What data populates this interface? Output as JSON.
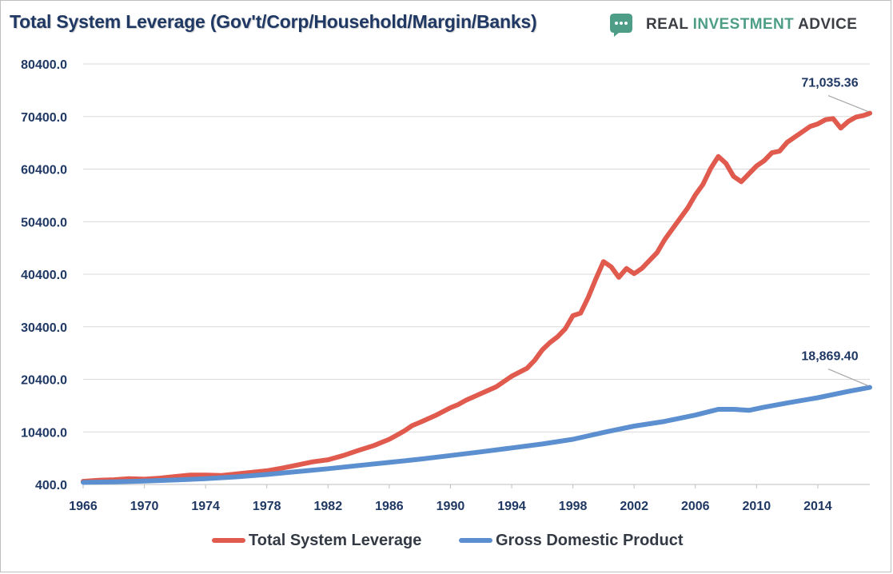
{
  "title": "Total System Leverage (Gov't/Corp/Household/Margin/Banks)",
  "brand": {
    "word1": "REAL ",
    "word2": "INVESTMENT",
    "word3": " ADVICE",
    "icon": "speech-bubble-icon",
    "icon_color": "#4e9e87"
  },
  "chart_data": {
    "type": "line",
    "title": "Total System Leverage (Gov't/Corp/Household/Margin/Banks)",
    "xlabel": "",
    "ylabel": "",
    "xlim": [
      1966,
      2017.4
    ],
    "ylim": [
      400,
      80400
    ],
    "y_ticks": [
      "80400.0",
      "70400.0",
      "60400.0",
      "50400.0",
      "40400.0",
      "30400.0",
      "20400.0",
      "10400.0",
      "400.0"
    ],
    "y_tick_values": [
      80400,
      70400,
      60400,
      50400,
      40400,
      30400,
      20400,
      10400,
      400
    ],
    "x_ticks": [
      "1966",
      "1970",
      "1974",
      "1978",
      "1982",
      "1986",
      "1990",
      "1994",
      "1998",
      "2002",
      "2006",
      "2010",
      "2014"
    ],
    "x_tick_values": [
      1966,
      1970,
      1974,
      1978,
      1982,
      1986,
      1990,
      1994,
      1998,
      2002,
      2006,
      2010,
      2014
    ],
    "grid": "horizontal",
    "legend_position": "bottom",
    "series": [
      {
        "name": "Total System Leverage",
        "color": "#e05a4e",
        "end_label": "71,035.36",
        "x": [
          1966,
          1967,
          1968,
          1969,
          1970,
          1971,
          1972,
          1973,
          1974,
          1975,
          1976,
          1977,
          1978,
          1979,
          1980,
          1981,
          1982,
          1983,
          1984,
          1985,
          1986,
          1986.5,
          1987,
          1987.5,
          1988,
          1989,
          1990,
          1990.5,
          1991,
          1992,
          1993,
          1994,
          1995,
          1995.5,
          1996,
          1996.5,
          1997,
          1997.5,
          1998,
          1998.5,
          1999,
          1999.5,
          2000,
          2000.5,
          2001,
          2001.5,
          2002,
          2002.5,
          2003,
          2003.5,
          2004,
          2004.5,
          2005,
          2005.5,
          2006,
          2006.5,
          2007,
          2007.5,
          2008,
          2008.5,
          2009,
          2009.5,
          2010,
          2010.5,
          2011,
          2011.5,
          2012,
          2012.5,
          2013,
          2013.5,
          2014,
          2014.5,
          2015,
          2015.5,
          2016,
          2016.5,
          2017,
          2017.4
        ],
        "values": [
          1000,
          1200,
          1300,
          1500,
          1400,
          1600,
          1900,
          2200,
          2200,
          2100,
          2400,
          2700,
          3000,
          3500,
          4100,
          4700,
          5100,
          5900,
          6900,
          7800,
          9000,
          9800,
          10600,
          11600,
          12200,
          13500,
          15000,
          15600,
          16400,
          17700,
          19000,
          21000,
          22500,
          24000,
          26000,
          27400,
          28500,
          30000,
          32500,
          33000,
          36000,
          39500,
          42800,
          41800,
          39800,
          41500,
          40500,
          41500,
          43000,
          44500,
          47000,
          49000,
          51000,
          53000,
          55500,
          57500,
          60500,
          62800,
          61500,
          59000,
          58000,
          59500,
          61000,
          62000,
          63500,
          63800,
          65500,
          66500,
          67500,
          68500,
          69000,
          69800,
          70000,
          68200,
          69500,
          70300,
          70600,
          71035.36
        ]
      },
      {
        "name": "Gross Domestic Product",
        "color": "#5b8fcf",
        "end_label": "18,869.40",
        "x": [
          1966,
          1968,
          1970,
          1972,
          1974,
          1976,
          1978,
          1980,
          1982,
          1984,
          1986,
          1988,
          1990,
          1992,
          1994,
          1996,
          1998,
          2000,
          2002,
          2004,
          2006,
          2007.5,
          2008.5,
          2009.5,
          2010.5,
          2012,
          2014,
          2016,
          2017.4
        ],
        "values": [
          800,
          900,
          1050,
          1250,
          1500,
          1850,
          2300,
          2850,
          3400,
          4000,
          4600,
          5200,
          5900,
          6600,
          7350,
          8100,
          9000,
          10300,
          11500,
          12400,
          13600,
          14700,
          14700,
          14500,
          15100,
          15900,
          16900,
          18100,
          18869.4
        ]
      }
    ]
  }
}
